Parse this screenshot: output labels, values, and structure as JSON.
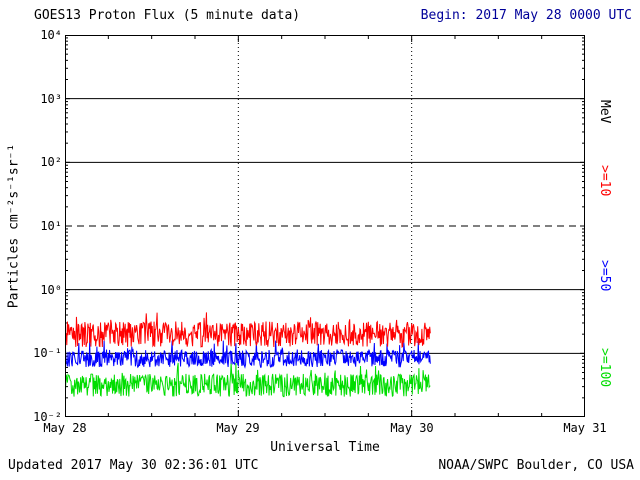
{
  "header": {
    "title": "GOES13 Proton Flux (5 minute data)",
    "begin_label": "Begin: 2017 May 28 0000 UTC",
    "begin_color": "#000099"
  },
  "footer": {
    "updated": "Updated 2017 May 30 02:36:01 UTC",
    "source": "NOAA/SWPC Boulder, CO USA"
  },
  "chart_data": {
    "type": "line",
    "title": "GOES13 Proton Flux (5 minute data)",
    "xlabel": "Universal Time",
    "ylabel": "Particles cm⁻²s⁻¹sr⁻¹",
    "y_scale": "log10",
    "y_log_range": [
      -2,
      4
    ],
    "y_ticks": [
      "10⁴",
      "10³",
      "10²",
      "10¹",
      "10⁰",
      "10⁻¹",
      "10⁻²"
    ],
    "x_range_days": [
      0,
      3
    ],
    "x_ticks": [
      "May 28",
      "May 29",
      "May 30",
      "May 31"
    ],
    "grid": {
      "h_solid_decades": [
        3,
        2,
        0,
        -1
      ],
      "h_dashed_decades": [
        1
      ],
      "v_dotted_days": [
        1,
        2
      ]
    },
    "right_axis_label": {
      "text": "MeV",
      "color": "#000000"
    },
    "legend_position": "right-vertical",
    "series": [
      {
        "name": ">=10",
        "units": "MeV",
        "color": "#ff0000",
        "cadence_minutes": 5,
        "start_day": 0,
        "end_day": 2.108,
        "approx_flux_range": [
          0.1,
          0.45
        ],
        "log10_center": -0.7,
        "log10_noise": 0.2,
        "spike_prob": 0.06,
        "spike_amp": 0.25,
        "log10_min": -1.0,
        "log10_max": -0.35
      },
      {
        "name": ">=50",
        "units": "MeV",
        "color": "#0000ff",
        "cadence_minutes": 5,
        "start_day": 0,
        "end_day": 2.108,
        "approx_flux_range": [
          0.045,
          0.16
        ],
        "log10_center": -1.08,
        "log10_noise": 0.14,
        "spike_prob": 0.08,
        "spike_amp": 0.3,
        "log10_min": -1.35,
        "log10_max": -0.8
      },
      {
        "name": ">=100",
        "units": "MeV",
        "color": "#00dd00",
        "cadence_minutes": 5,
        "start_day": 0,
        "end_day": 2.108,
        "approx_flux_range": [
          0.015,
          0.07
        ],
        "log10_center": -1.5,
        "log10_noise": 0.18,
        "spike_prob": 0.06,
        "spike_amp": 0.25,
        "log10_min": -1.85,
        "log10_max": -1.15
      }
    ]
  }
}
